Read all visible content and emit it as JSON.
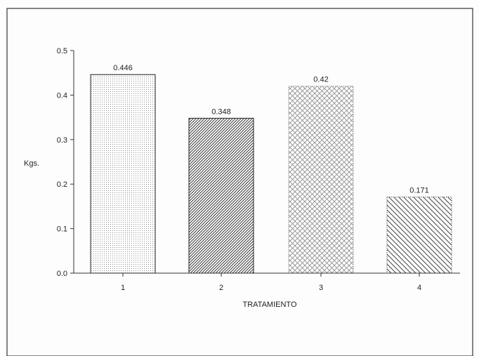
{
  "chart_data": {
    "type": "bar",
    "categories": [
      "1",
      "2",
      "3",
      "4"
    ],
    "values": [
      0.446,
      0.348,
      0.42,
      0.171
    ],
    "data_labels": [
      "0.446",
      "0.348",
      "0.42",
      "0.171"
    ],
    "title": "",
    "xlabel": "TRATAMIENTO",
    "ylabel": "Kgs.",
    "ylim": [
      0,
      0.5
    ],
    "yticks": [
      "0.0",
      "0.1",
      "0.2",
      "0.3",
      "0.4",
      "0.5"
    ],
    "grid": false,
    "legend": "none",
    "bar_patterns": [
      "dots",
      "dense-diagonal-hatch",
      "crosshatch",
      "diagonal-hatch"
    ],
    "colors": {
      "ink": "#222222",
      "frame": "#333333",
      "bar_fill": "#ffffff"
    }
  }
}
